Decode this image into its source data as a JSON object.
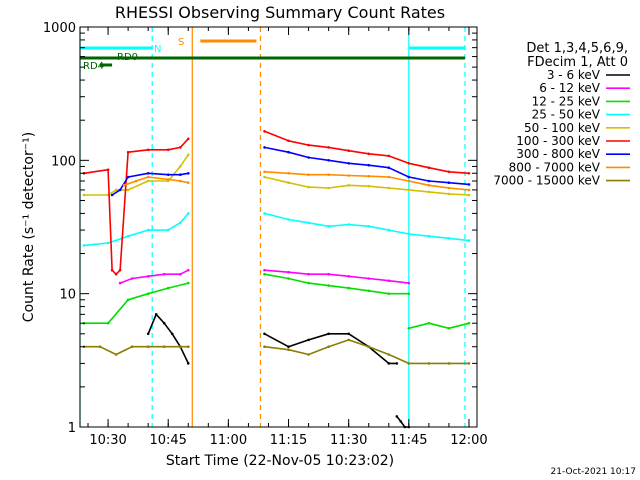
{
  "chart_data": {
    "type": "line",
    "title": "RHESSI Observing Summary Count Rates",
    "xlabel": "Start Time (22-Nov-05 10:23:02)",
    "ylabel": "Count Rate (s⁻¹ detector⁻¹)",
    "y_scale": "log",
    "xlim": [
      "10:23",
      "12:02"
    ],
    "ylim": [
      1,
      1000
    ],
    "x_ticks": [
      "10:30",
      "10:45",
      "11:00",
      "11:15",
      "11:30",
      "11:45",
      "12:00"
    ],
    "y_ticks": [
      "1",
      "10",
      "100",
      "1000"
    ],
    "grid": false,
    "legend_position": "right",
    "legend_header": [
      "Det 1,3,4,5,6,9,",
      "FDecim 1, Att 0"
    ],
    "timestamp": "21-Oct-2021 10:17",
    "data_gap": [
      "10:51",
      "11:08"
    ],
    "series": [
      {
        "name": "3 - 6 keV",
        "color": "#000000",
        "segments": [
          {
            "x": [
              "10:40",
              "10:42",
              "10:44",
              "10:46",
              "10:48",
              "10:50"
            ],
            "y": [
              5,
              7,
              6,
              5,
              4,
              3
            ]
          },
          {
            "x": [
              "11:09",
              "11:15",
              "11:20",
              "11:25",
              "11:30",
              "11:35",
              "11:40",
              "11:42"
            ],
            "y": [
              5,
              4,
              4.5,
              5,
              5,
              4,
              3,
              3
            ]
          },
          {
            "x": [
              "11:42",
              "11:43",
              "11:44",
              "11:45"
            ],
            "y": [
              1.2,
              1.1,
              1.0,
              1.0
            ]
          }
        ]
      },
      {
        "name": "6 - 12 keV",
        "color": "#ff00ff",
        "segments": [
          {
            "x": [
              "10:33",
              "10:36",
              "10:40",
              "10:44",
              "10:48",
              "10:50"
            ],
            "y": [
              12,
              13,
              13.5,
              14,
              14,
              15
            ]
          },
          {
            "x": [
              "11:09",
              "11:15",
              "11:20",
              "11:25",
              "11:30",
              "11:35",
              "11:40",
              "11:45"
            ],
            "y": [
              15,
              14.5,
              14,
              14,
              13.5,
              13,
              12.5,
              12
            ]
          }
        ]
      },
      {
        "name": "12 - 25 keV",
        "color": "#00e000",
        "segments": [
          {
            "x": [
              "10:24",
              "10:30",
              "10:35",
              "10:40",
              "10:45",
              "10:50"
            ],
            "y": [
              6,
              6,
              9,
              10,
              11,
              12
            ]
          },
          {
            "x": [
              "11:09",
              "11:15",
              "11:20",
              "11:25",
              "11:30",
              "11:35",
              "11:40",
              "11:45"
            ],
            "y": [
              14,
              13,
              12,
              11.5,
              11,
              10.5,
              10,
              10
            ]
          },
          {
            "x": [
              "11:45",
              "11:50",
              "11:55",
              "12:00"
            ],
            "y": [
              5.5,
              6,
              5.5,
              6
            ]
          }
        ]
      },
      {
        "name": "25 - 50 keV",
        "color": "#00ffff",
        "segments": [
          {
            "x": [
              "10:24",
              "10:30",
              "10:35",
              "10:40",
              "10:45",
              "10:48",
              "10:50"
            ],
            "y": [
              23,
              24,
              27,
              30,
              30,
              34,
              40
            ]
          },
          {
            "x": [
              "11:09",
              "11:15",
              "11:20",
              "11:25",
              "11:30",
              "11:35",
              "11:40",
              "11:45",
              "11:50",
              "11:55",
              "12:00"
            ],
            "y": [
              40,
              36,
              34,
              32,
              33,
              32,
              30,
              28,
              27,
              26,
              25
            ]
          }
        ]
      },
      {
        "name": "50 - 100 keV",
        "color": "#d4c000",
        "segments": [
          {
            "x": [
              "10:24",
              "10:30",
              "10:32",
              "10:35",
              "10:40",
              "10:45",
              "10:48",
              "10:50"
            ],
            "y": [
              55,
              55,
              60,
              60,
              70,
              70,
              90,
              110
            ]
          },
          {
            "x": [
              "11:09",
              "11:15",
              "11:20",
              "11:25",
              "11:30",
              "11:35",
              "11:40",
              "11:45",
              "11:50",
              "11:55",
              "12:00"
            ],
            "y": [
              75,
              68,
              63,
              62,
              65,
              64,
              62,
              60,
              58,
              56,
              55
            ]
          }
        ]
      },
      {
        "name": "100 - 300 keV",
        "color": "#ff0000",
        "segments": [
          {
            "x": [
              "10:24",
              "10:30",
              "10:31",
              "10:32",
              "10:33",
              "10:35",
              "10:40",
              "10:45",
              "10:48",
              "10:50"
            ],
            "y": [
              80,
              85,
              15,
              14,
              15,
              115,
              120,
              120,
              125,
              145
            ]
          },
          {
            "x": [
              "11:09",
              "11:15",
              "11:20",
              "11:25",
              "11:30",
              "11:35",
              "11:40",
              "11:45",
              "11:50",
              "11:55",
              "12:00"
            ],
            "y": [
              165,
              140,
              130,
              125,
              118,
              112,
              108,
              95,
              88,
              82,
              80
            ]
          }
        ]
      },
      {
        "name": "300 - 800 keV",
        "color": "#0000ff",
        "segments": [
          {
            "x": [
              "10:31",
              "10:33",
              "10:35",
              "10:40",
              "10:45",
              "10:48",
              "10:50"
            ],
            "y": [
              55,
              60,
              75,
              80,
              78,
              78,
              80
            ]
          },
          {
            "x": [
              "11:09",
              "11:15",
              "11:20",
              "11:25",
              "11:30",
              "11:35",
              "11:40",
              "11:45",
              "11:50",
              "11:55",
              "12:00"
            ],
            "y": [
              125,
              115,
              105,
              100,
              95,
              92,
              88,
              75,
              70,
              68,
              66
            ]
          }
        ]
      },
      {
        "name": "800 - 7000 keV",
        "color": "#ff8c00",
        "segments": [
          {
            "x": [
              "10:34",
              "10:37",
              "10:40",
              "10:45",
              "10:48",
              "10:50"
            ],
            "y": [
              65,
              70,
              75,
              72,
              70,
              68
            ]
          },
          {
            "x": [
              "11:09",
              "11:15",
              "11:20",
              "11:25",
              "11:30",
              "11:35",
              "11:40",
              "11:45",
              "11:50",
              "11:55",
              "12:00"
            ],
            "y": [
              82,
              80,
              78,
              78,
              77,
              76,
              75,
              70,
              65,
              62,
              60
            ]
          }
        ]
      },
      {
        "name": "7000 - 15000 keV",
        "color": "#8b7d00",
        "segments": [
          {
            "x": [
              "10:24",
              "10:28",
              "10:32",
              "10:36",
              "10:40",
              "10:44",
              "10:48",
              "10:50"
            ],
            "y": [
              4,
              4,
              3.5,
              4,
              4,
              4,
              4,
              4
            ]
          },
          {
            "x": [
              "11:09",
              "11:15",
              "11:20",
              "11:25",
              "11:30",
              "11:35",
              "11:40",
              "11:45",
              "11:50",
              "11:55",
              "12:00"
            ],
            "y": [
              4,
              3.8,
              3.5,
              4,
              4.5,
              4,
              3.5,
              3,
              3,
              3,
              3
            ]
          }
        ]
      }
    ],
    "flags": [
      {
        "label": "N",
        "color": "#00ffff"
      },
      {
        "label": "S",
        "color": "#ff8c00"
      },
      {
        "label": "RD4",
        "color": "#006400"
      },
      {
        "label": "RD0",
        "color": "#006400"
      }
    ],
    "flag_bars": [
      {
        "name": "night",
        "color": "#00ffff",
        "x0": "10:23",
        "x1": "10:41"
      },
      {
        "name": "night",
        "color": "#00ffff",
        "x0": "11:45",
        "x1": "11:59"
      },
      {
        "name": "saa",
        "color": "#ff8c00",
        "x0": "10:53",
        "x1": "11:07"
      },
      {
        "name": "decimation",
        "color": "#006400",
        "x0": "10:23",
        "x1": "11:59"
      },
      {
        "name": "rd4",
        "color": "#006400",
        "x0": "10:28",
        "x1": "10:31"
      }
    ],
    "vlines": [
      {
        "x": "10:23",
        "color": "#00ffff",
        "dashed": false
      },
      {
        "x": "10:41",
        "color": "#00ffff",
        "dashed": true
      },
      {
        "x": "10:51",
        "color": "#ff8c00",
        "dashed": false
      },
      {
        "x": "11:08",
        "color": "#ff8c00",
        "dashed": true
      },
      {
        "x": "11:45",
        "color": "#00ffff",
        "dashed": false
      },
      {
        "x": "11:59",
        "color": "#00ffff",
        "dashed": true
      }
    ]
  }
}
